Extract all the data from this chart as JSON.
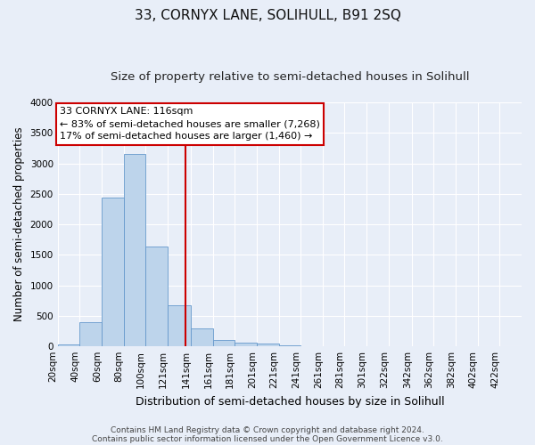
{
  "title": "33, CORNYX LANE, SOLIHULL, B91 2SQ",
  "subtitle": "Size of property relative to semi-detached houses in Solihull",
  "xlabel": "Distribution of semi-detached houses by size in Solihull",
  "ylabel": "Number of semi-detached properties",
  "footer1": "Contains HM Land Registry data © Crown copyright and database right 2024.",
  "footer2": "Contains public sector information licensed under the Open Government Licence v3.0.",
  "annotation_title": "33 CORNYX LANE: 116sqm",
  "annotation_line1": "← 83% of semi-detached houses are smaller (7,268)",
  "annotation_line2": "17% of semi-detached houses are larger (1,460) →",
  "property_size": 116,
  "bar_labels": [
    "20sqm",
    "40sqm",
    "60sqm",
    "80sqm",
    "100sqm",
    "121sqm",
    "141sqm",
    "161sqm",
    "181sqm",
    "201sqm",
    "221sqm",
    "241sqm",
    "261sqm",
    "281sqm",
    "301sqm",
    "322sqm",
    "342sqm",
    "362sqm",
    "382sqm",
    "402sqm",
    "422sqm"
  ],
  "bar_left_edges": [
    0,
    20,
    40,
    60,
    80,
    100,
    121,
    141,
    161,
    181,
    201,
    221,
    241,
    261,
    281,
    301,
    322,
    342,
    362,
    382,
    402
  ],
  "bar_widths": [
    20,
    20,
    20,
    20,
    20,
    21,
    20,
    20,
    20,
    20,
    20,
    20,
    20,
    20,
    20,
    21,
    20,
    20,
    20,
    20,
    20
  ],
  "bar_heights": [
    30,
    400,
    2440,
    3150,
    1640,
    680,
    290,
    110,
    60,
    50,
    20,
    5,
    5,
    3,
    2,
    2,
    1,
    1,
    1,
    1,
    1
  ],
  "bar_color": "#bdd4eb",
  "bar_edge_color": "#6699cc",
  "vline_x": 116,
  "vline_color": "#cc0000",
  "ylim": [
    0,
    4000
  ],
  "yticks": [
    0,
    500,
    1000,
    1500,
    2000,
    2500,
    3000,
    3500,
    4000
  ],
  "xlim_left": 0,
  "xlim_right": 422,
  "bg_color": "#e8eef8",
  "ax_bg_color": "#e8eef8",
  "grid_color": "#ffffff",
  "annotation_box_color": "#ffffff",
  "annotation_box_edge": "#cc0000",
  "title_fontsize": 11,
  "subtitle_fontsize": 9.5,
  "xlabel_fontsize": 9,
  "ylabel_fontsize": 8.5,
  "tick_fontsize": 7.5,
  "annotation_fontsize": 8,
  "footer_fontsize": 6.5
}
